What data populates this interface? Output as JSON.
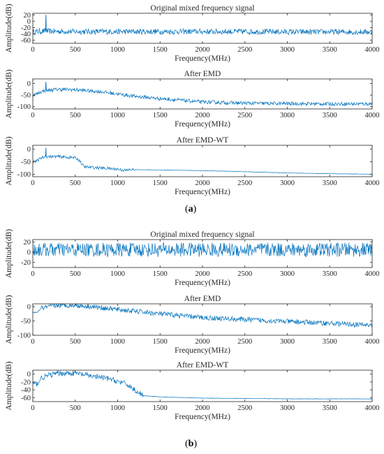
{
  "chart_data": [
    {
      "type": "line",
      "panel": "a",
      "title": "Original mixed frequency signal",
      "xlabel": "Frequency(MHz)",
      "ylabel": "Amplitude(dB)",
      "xlim": [
        0,
        4000
      ],
      "ylim": [
        -70,
        25
      ],
      "xticks": [
        0,
        500,
        1000,
        1500,
        2000,
        2500,
        3000,
        3500,
        4000
      ],
      "yticks": [
        -60,
        -40,
        -20,
        0,
        20
      ],
      "series": [
        {
          "x": [
            0,
            50,
            100,
            150,
            155,
            160,
            200,
            500,
            1000,
            1500,
            2000,
            2500,
            3000,
            3500,
            4000
          ],
          "y": [
            -35,
            -33,
            -32,
            -31,
            20,
            -31,
            -32,
            -33,
            -33,
            -33,
            -33,
            -33,
            -34,
            -34,
            -34
          ]
        }
      ],
      "color": "#0072BD"
    },
    {
      "type": "line",
      "panel": "a",
      "title": "After EMD",
      "xlabel": "Frequency(MHz)",
      "ylabel": "Amplitude(dB)",
      "xlim": [
        0,
        4000
      ],
      "ylim": [
        -110,
        20
      ],
      "xticks": [
        0,
        500,
        1000,
        1500,
        2000,
        2500,
        3000,
        3500,
        4000
      ],
      "yticks": [
        -100,
        -50,
        0
      ],
      "series": [
        {
          "x": [
            0,
            50,
            100,
            150,
            155,
            160,
            300,
            500,
            800,
            1000,
            1200,
            1500,
            2000,
            2500,
            3000,
            3500,
            4000
          ],
          "y": [
            -50,
            -45,
            -35,
            -30,
            5,
            -30,
            -25,
            -27,
            -35,
            -45,
            -55,
            -65,
            -80,
            -85,
            -87,
            -88,
            -88
          ]
        }
      ],
      "color": "#0072BD"
    },
    {
      "type": "line",
      "panel": "a",
      "title": "After EMD-WT",
      "xlabel": "Frequency(MHz)",
      "ylabel": "Amplitude(dB)",
      "xlim": [
        0,
        4000
      ],
      "ylim": [
        -110,
        15
      ],
      "xticks": [
        0,
        500,
        1000,
        1500,
        2000,
        2500,
        3000,
        3500,
        4000
      ],
      "yticks": [
        -100,
        -50,
        0
      ],
      "series": [
        {
          "x": [
            0,
            50,
            100,
            150,
            155,
            160,
            300,
            500,
            550,
            600,
            650,
            800,
            1000,
            1100,
            1150,
            1500,
            2000,
            2500,
            3000,
            3500,
            4000
          ],
          "y": [
            -50,
            -47,
            -35,
            -30,
            5,
            -30,
            -30,
            -35,
            -45,
            -70,
            -72,
            -75,
            -80,
            -85,
            -82,
            -83,
            -86,
            -90,
            -95,
            -98,
            -100
          ]
        }
      ],
      "color": "#0072BD"
    },
    {
      "type": "line",
      "panel": "b",
      "title": "Original mixed frequency signal",
      "xlabel": "Frequency(MHz)",
      "ylabel": "Amplitude(dB)",
      "xlim": [
        0,
        4000
      ],
      "ylim": [
        -30,
        25
      ],
      "xticks": [
        0,
        500,
        1000,
        1500,
        2000,
        2500,
        3000,
        3500,
        4000
      ],
      "yticks": [
        -20,
        0,
        20
      ],
      "series": [
        {
          "x": [
            0,
            500,
            1000,
            1500,
            2000,
            2500,
            3000,
            3500,
            4000
          ],
          "y": [
            5,
            5,
            5,
            5,
            5,
            5,
            5,
            5,
            5
          ]
        }
      ],
      "color": "#0072BD"
    },
    {
      "type": "line",
      "panel": "b",
      "title": "After EMD",
      "xlabel": "Frequency(MHz)",
      "ylabel": "Amplitude(dB)",
      "xlim": [
        0,
        4000
      ],
      "ylim": [
        -100,
        10
      ],
      "xticks": [
        0,
        500,
        1000,
        1500,
        2000,
        2500,
        3000,
        3500,
        4000
      ],
      "yticks": [
        -100,
        -50,
        0
      ],
      "series": [
        {
          "x": [
            0,
            50,
            100,
            200,
            300,
            500,
            700,
            1000,
            1500,
            2000,
            2500,
            3000,
            3500,
            4000
          ],
          "y": [
            -20,
            -20,
            -5,
            0,
            5,
            5,
            0,
            -10,
            -25,
            -38,
            -45,
            -52,
            -58,
            -65
          ]
        }
      ],
      "color": "#0072BD"
    },
    {
      "type": "line",
      "panel": "b",
      "title": "After EMD-WT",
      "xlabel": "Frequency(MHz)",
      "ylabel": "Amplitude(dB)",
      "xlim": [
        0,
        4000
      ],
      "ylim": [
        -70,
        10
      ],
      "xticks": [
        0,
        500,
        1000,
        1500,
        2000,
        2500,
        3000,
        3500,
        4000
      ],
      "yticks": [
        -60,
        -40,
        -20,
        0
      ],
      "series": [
        {
          "x": [
            0,
            50,
            100,
            200,
            300,
            500,
            700,
            900,
            1100,
            1200,
            1300,
            1500,
            2000,
            2500,
            3000,
            3500,
            4000
          ],
          "y": [
            -25,
            -25,
            -10,
            -2,
            2,
            2,
            -5,
            -12,
            -25,
            -40,
            -55,
            -58,
            -61,
            -62,
            -63,
            -63,
            -63
          ]
        }
      ],
      "color": "#0072BD"
    }
  ],
  "labels": {
    "a": "a",
    "b": "b"
  }
}
